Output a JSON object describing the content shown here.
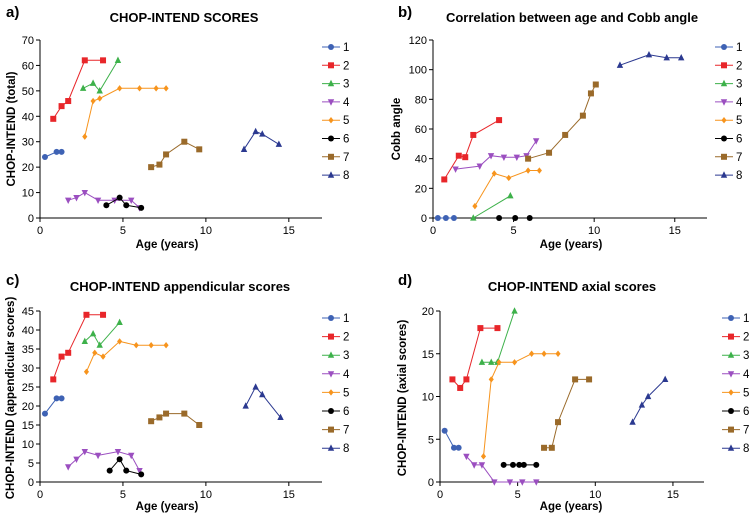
{
  "figure": {
    "series_names": [
      "1",
      "2",
      "3",
      "4",
      "5",
      "6",
      "7",
      "8"
    ],
    "colors": [
      "#3E62B4",
      "#E8262A",
      "#3DB14A",
      "#9B4FC0",
      "#F7941D",
      "#000000",
      "#9A6A2A",
      "#2B3990"
    ],
    "markers": [
      "circle",
      "square",
      "triangle",
      "triangle-down",
      "diamond",
      "circle",
      "square",
      "triangle"
    ]
  },
  "chart_data": [
    {
      "type": "line",
      "panel_label": "a)",
      "title": "CHOP-INTEND SCORES",
      "xlabel": "Age (years)",
      "ylabel": "CHOP-INTEND  (total)",
      "xlim": [
        0,
        17
      ],
      "ylim": [
        0,
        70
      ],
      "xticks": [
        0,
        5,
        10,
        15
      ],
      "yticks": [
        0,
        10,
        20,
        30,
        40,
        50,
        60,
        70
      ],
      "legend_position": "right",
      "series": [
        {
          "name": "1",
          "x": [
            0.3,
            1.0,
            1.3
          ],
          "y": [
            24,
            26,
            26
          ]
        },
        {
          "name": "2",
          "x": [
            0.8,
            1.3,
            1.7,
            2.7,
            3.8
          ],
          "y": [
            39,
            44,
            46,
            62,
            62
          ]
        },
        {
          "name": "3",
          "x": [
            2.6,
            3.2,
            3.6,
            4.7
          ],
          "y": [
            51,
            53,
            50,
            62
          ]
        },
        {
          "name": "4",
          "x": [
            1.7,
            2.2,
            2.7,
            3.5,
            4.5,
            5.5,
            6.0
          ],
          "y": [
            7,
            8,
            10,
            7,
            7,
            7,
            4
          ]
        },
        {
          "name": "5",
          "x": [
            2.7,
            3.2,
            3.6,
            4.8,
            6.0,
            7.0,
            7.6
          ],
          "y": [
            32,
            46,
            47,
            51,
            51,
            51,
            51
          ]
        },
        {
          "name": "6",
          "x": [
            4.0,
            4.8,
            5.2,
            6.1
          ],
          "y": [
            5,
            8,
            5,
            4
          ]
        },
        {
          "name": "7",
          "x": [
            6.7,
            7.2,
            7.6,
            8.7,
            9.6
          ],
          "y": [
            20,
            21,
            25,
            30,
            27
          ]
        },
        {
          "name": "8",
          "x": [
            12.3,
            13.0,
            13.4,
            14.4
          ],
          "y": [
            27,
            34,
            33,
            29
          ]
        }
      ]
    },
    {
      "type": "line",
      "panel_label": "b)",
      "title": "Correlation between age and Cobb angle",
      "xlabel": "Age (years)",
      "ylabel": "Cobb angle",
      "xlim": [
        0,
        17
      ],
      "ylim": [
        0,
        120
      ],
      "xticks": [
        0,
        5,
        10,
        15
      ],
      "yticks": [
        0,
        20,
        40,
        60,
        80,
        100,
        120
      ],
      "legend_position": "right",
      "series": [
        {
          "name": "1",
          "x": [
            0.3,
            0.8,
            1.3
          ],
          "y": [
            0,
            0,
            0
          ]
        },
        {
          "name": "2",
          "x": [
            0.7,
            1.6,
            2.0,
            2.5,
            4.1
          ],
          "y": [
            26,
            42,
            41,
            56,
            66
          ]
        },
        {
          "name": "3",
          "x": [
            2.5,
            4.8
          ],
          "y": [
            0,
            15
          ]
        },
        {
          "name": "4",
          "x": [
            1.4,
            2.9,
            3.6,
            4.4,
            5.2,
            5.8,
            6.4
          ],
          "y": [
            33,
            35,
            42,
            41,
            41,
            42,
            52
          ]
        },
        {
          "name": "5",
          "x": [
            2.6,
            3.8,
            4.7,
            5.9,
            6.6
          ],
          "y": [
            8,
            30,
            27,
            32,
            32
          ]
        },
        {
          "name": "6",
          "x": [
            4.1,
            5.1,
            6.0
          ],
          "y": [
            0,
            0,
            0
          ]
        },
        {
          "name": "7",
          "x": [
            5.9,
            7.2,
            8.2,
            9.3,
            9.8,
            10.1
          ],
          "y": [
            40,
            44,
            56,
            69,
            84,
            90
          ]
        },
        {
          "name": "8",
          "x": [
            11.6,
            13.4,
            14.5,
            15.4
          ],
          "y": [
            103,
            110,
            108,
            108
          ]
        }
      ]
    },
    {
      "type": "line",
      "panel_label": "c)",
      "title": "CHOP-INTEND appendicular scores",
      "xlabel": "Age (years)",
      "ylabel": "CHOP-INTEND (appendicular scores)",
      "xlim": [
        0,
        17
      ],
      "ylim": [
        0,
        45
      ],
      "xticks": [
        0,
        5,
        10,
        15
      ],
      "yticks": [
        0,
        5,
        10,
        15,
        20,
        25,
        30,
        35,
        40,
        45
      ],
      "legend_position": "right",
      "series": [
        {
          "name": "1",
          "x": [
            0.3,
            1.0,
            1.3
          ],
          "y": [
            18,
            22,
            22
          ]
        },
        {
          "name": "2",
          "x": [
            0.8,
            1.3,
            1.7,
            2.8,
            3.8
          ],
          "y": [
            27,
            33,
            34,
            44,
            44
          ]
        },
        {
          "name": "3",
          "x": [
            2.7,
            3.2,
            3.6,
            4.8
          ],
          "y": [
            37,
            39,
            36,
            42
          ]
        },
        {
          "name": "4",
          "x": [
            1.7,
            2.2,
            2.7,
            3.5,
            4.7,
            5.5,
            6.0
          ],
          "y": [
            4,
            6,
            8,
            7,
            8,
            7,
            3
          ]
        },
        {
          "name": "5",
          "x": [
            2.8,
            3.3,
            3.8,
            4.8,
            5.8,
            6.7,
            7.6
          ],
          "y": [
            29,
            34,
            33,
            37,
            36,
            36,
            36
          ]
        },
        {
          "name": "6",
          "x": [
            4.2,
            4.8,
            5.2,
            6.1
          ],
          "y": [
            3,
            6,
            3,
            2
          ]
        },
        {
          "name": "7",
          "x": [
            6.7,
            7.2,
            7.6,
            8.7,
            9.6
          ],
          "y": [
            16,
            17,
            18,
            18,
            15
          ]
        },
        {
          "name": "8",
          "x": [
            12.4,
            13.0,
            13.4,
            14.5
          ],
          "y": [
            20,
            25,
            23,
            17
          ]
        }
      ]
    },
    {
      "type": "line",
      "panel_label": "d)",
      "title": "CHOP-INTEND axial scores",
      "xlabel": "Age (years)",
      "ylabel": "CHOP-INTEND (axial scores)",
      "xlim": [
        0,
        17
      ],
      "ylim": [
        0,
        20
      ],
      "xticks": [
        0,
        5,
        10,
        15
      ],
      "yticks": [
        0,
        5,
        10,
        15,
        20
      ],
      "legend_position": "right",
      "series": [
        {
          "name": "1",
          "x": [
            0.3,
            0.9,
            1.2
          ],
          "y": [
            6,
            4,
            4
          ]
        },
        {
          "name": "2",
          "x": [
            0.8,
            1.3,
            1.7,
            2.6,
            3.7
          ],
          "y": [
            12,
            11,
            12,
            18,
            18
          ]
        },
        {
          "name": "3",
          "x": [
            2.7,
            3.3,
            3.7,
            4.8
          ],
          "y": [
            14,
            14,
            14,
            20
          ]
        },
        {
          "name": "4",
          "x": [
            1.7,
            2.2,
            2.7,
            3.5,
            4.5,
            5.3,
            6.2
          ],
          "y": [
            3,
            2,
            2,
            0,
            0,
            0,
            0
          ]
        },
        {
          "name": "5",
          "x": [
            2.8,
            3.3,
            3.8,
            4.8,
            5.9,
            6.7,
            7.6
          ],
          "y": [
            3,
            12,
            14,
            14,
            15,
            15,
            15
          ]
        },
        {
          "name": "6",
          "x": [
            4.1,
            4.7,
            5.1,
            5.4,
            6.2
          ],
          "y": [
            2,
            2,
            2,
            2,
            2
          ]
        },
        {
          "name": "7",
          "x": [
            6.7,
            7.2,
            7.6,
            8.7,
            9.6
          ],
          "y": [
            4,
            4,
            7,
            12,
            12
          ]
        },
        {
          "name": "8",
          "x": [
            12.4,
            13.0,
            13.4,
            14.5
          ],
          "y": [
            7,
            9,
            10,
            12
          ]
        }
      ]
    }
  ]
}
